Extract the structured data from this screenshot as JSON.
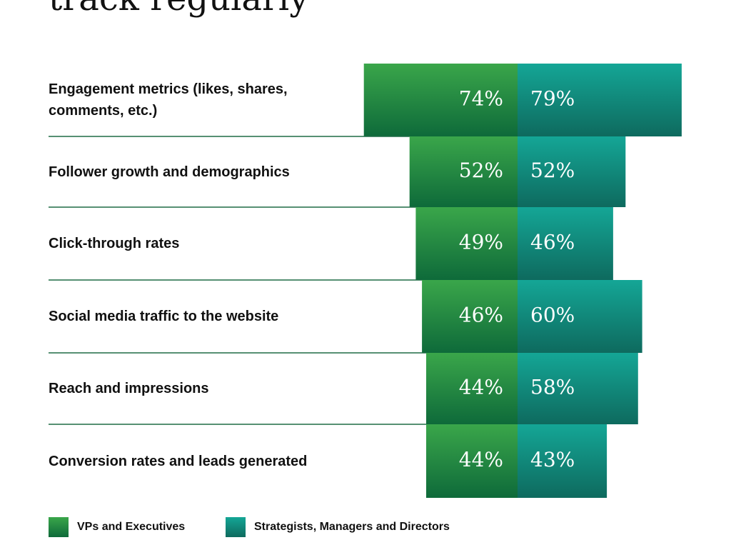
{
  "title": "track regularly",
  "colors": {
    "vp_top": "#3aa64a",
    "vp_bottom": "#0e6a3a",
    "strat_top": "#14a696",
    "strat_bottom": "#0e6a5e",
    "divider": "#1f6b45",
    "value_text": "#ffffff"
  },
  "legend": {
    "vp_label": "VPs and Executives",
    "strat_label": "Strategists, Managers and Directors"
  },
  "chart_data": {
    "type": "bar",
    "orientation": "horizontal-diverging",
    "title": "track regularly",
    "categories": [
      "Engagement metrics (likes, shares, comments, etc.)",
      "Follower growth and demographics",
      "Click-through rates",
      "Social media traffic to the website",
      "Reach and impressions",
      "Conversion rates and leads generated"
    ],
    "series": [
      {
        "name": "VPs and Executives",
        "values": [
          74,
          52,
          49,
          46,
          44,
          44
        ],
        "labels": [
          "74%",
          "52%",
          "49%",
          "46%",
          "44%",
          "44%"
        ]
      },
      {
        "name": "Strategists, Managers and Directors",
        "values": [
          79,
          52,
          46,
          60,
          58,
          43
        ],
        "labels": [
          "79%",
          "52%",
          "46%",
          "60%",
          "58%",
          "43%"
        ]
      }
    ],
    "unit": "%",
    "legend_position": "bottom-left",
    "grid": false
  }
}
